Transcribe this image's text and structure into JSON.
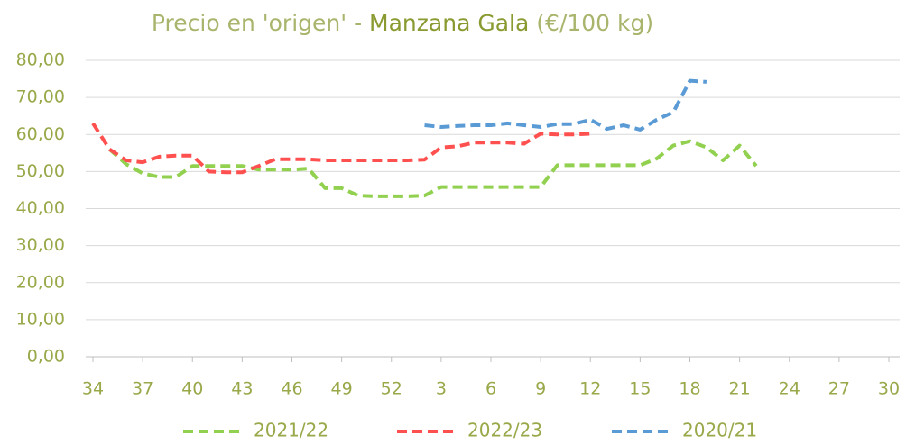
{
  "chart_data": {
    "type": "line",
    "title": [
      "Precio en 'origen' - ",
      "Manzana Gala",
      " (€/100 kg)"
    ],
    "categories": [
      "34",
      null,
      null,
      "37",
      null,
      null,
      "40",
      null,
      null,
      "43",
      null,
      null,
      "46",
      null,
      null,
      "49",
      null,
      null,
      "52",
      null,
      null,
      "3",
      null,
      null,
      "6",
      null,
      null,
      "9",
      null,
      null,
      "12",
      null,
      null,
      "15",
      null,
      null,
      "18",
      null,
      null,
      "21",
      null,
      null,
      "24",
      null,
      null,
      "27",
      null,
      null,
      "30"
    ],
    "series": [
      {
        "name": "2021/22",
        "color": "#92d050",
        "values": [
          null,
          56,
          52,
          49.5,
          48.5,
          48.5,
          51.5,
          51.5,
          51.5,
          51.5,
          50.5,
          50.5,
          50.5,
          50.8,
          45.5,
          45.5,
          43.5,
          43.3,
          43.3,
          43.3,
          43.5,
          45.8,
          45.8,
          45.8,
          45.8,
          45.8,
          45.8,
          45.8,
          51.7,
          51.7,
          51.7,
          51.7,
          51.7,
          51.7,
          53.5,
          57,
          58.2,
          56.5,
          53,
          57,
          51.5,
          null,
          null,
          null,
          null,
          null,
          null,
          null,
          null
        ]
      },
      {
        "name": "2022/23",
        "color": "#ff5050",
        "values": [
          63,
          56,
          53,
          52.5,
          54,
          54.3,
          54.3,
          50,
          49.8,
          49.8,
          51.5,
          53.3,
          53.3,
          53.3,
          53,
          53,
          53,
          53,
          53,
          53,
          53.2,
          56.5,
          56.8,
          57.8,
          57.8,
          57.8,
          57.5,
          60.2,
          60,
          60,
          60.2,
          null,
          null,
          null,
          null,
          null,
          null,
          null,
          null,
          null,
          null,
          null,
          null,
          null,
          null,
          null,
          null,
          null,
          null
        ]
      },
      {
        "name": "2020/21",
        "color": "#5b9bd5",
        "values": [
          null,
          null,
          null,
          null,
          null,
          null,
          null,
          null,
          null,
          null,
          null,
          null,
          null,
          null,
          null,
          null,
          null,
          null,
          null,
          null,
          62.5,
          62,
          62.3,
          62.5,
          62.5,
          63,
          62.5,
          62,
          62.8,
          62.8,
          64,
          61.5,
          62.5,
          61.3,
          64,
          66,
          74.5,
          74.2,
          null,
          null,
          null,
          null,
          null,
          null,
          null,
          null,
          null,
          null,
          null
        ]
      }
    ],
    "ylim": [
      0,
      80
    ],
    "yticks": [
      {
        "value": 0,
        "label": "0,00"
      },
      {
        "value": 10,
        "label": "10,00"
      },
      {
        "value": 20,
        "label": "20,00"
      },
      {
        "value": 30,
        "label": "30,00"
      },
      {
        "value": 40,
        "label": "40,00"
      },
      {
        "value": 50,
        "label": "50,00"
      },
      {
        "value": 60,
        "label": "60,00"
      },
      {
        "value": 70,
        "label": "70,00"
      },
      {
        "value": 80,
        "label": "80,00"
      }
    ],
    "grid": true,
    "legend": "bottom"
  }
}
